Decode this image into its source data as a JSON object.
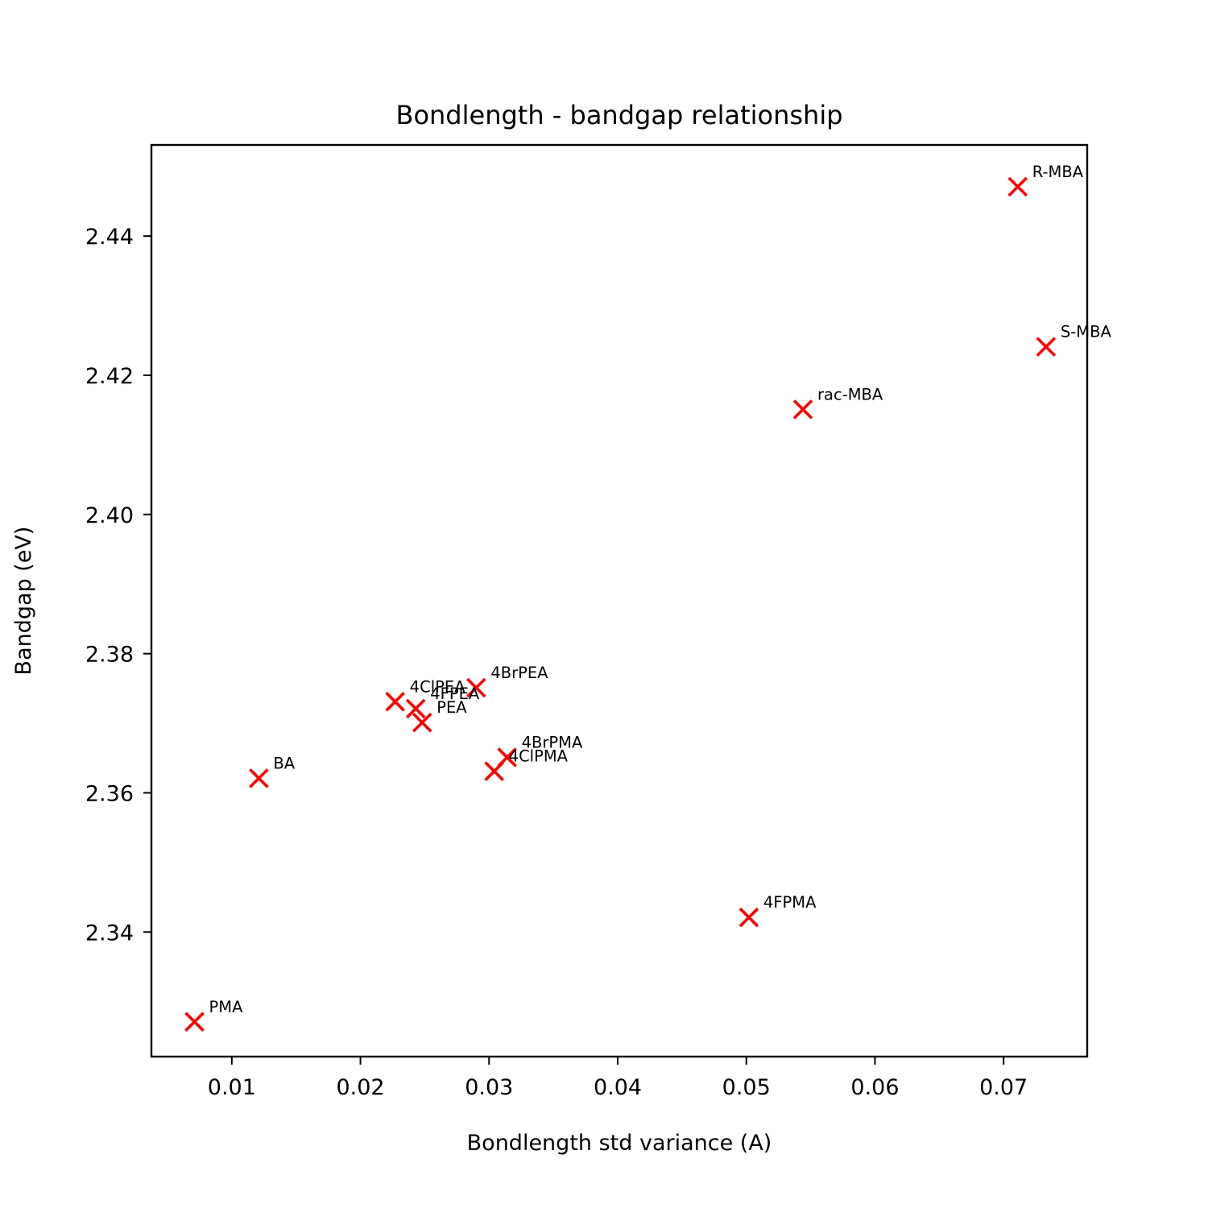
{
  "chart_data": {
    "type": "scatter",
    "title": "Bondlength - bandgap relationship",
    "xlabel": "Bondlength std variance (A)",
    "ylabel": "Bandgap (eV)",
    "xlim": [
      0.00375,
      0.0765
    ],
    "ylim": [
      2.3221,
      2.4531
    ],
    "xticks": [
      0.01,
      0.02,
      0.03,
      0.04,
      0.05,
      0.06,
      0.07
    ],
    "xtick_labels": [
      "0.01",
      "0.02",
      "0.03",
      "0.04",
      "0.05",
      "0.06",
      "0.07"
    ],
    "yticks": [
      2.34,
      2.36,
      2.38,
      2.4,
      2.42,
      2.44
    ],
    "ytick_labels": [
      "2.34",
      "2.36",
      "2.38",
      "2.40",
      "2.42",
      "2.44"
    ],
    "grid": false,
    "legend": "none",
    "marker": "x",
    "marker_color": "#ff0000",
    "points": [
      {
        "label": "R-MBA",
        "x": 0.0711,
        "y": 2.4471
      },
      {
        "label": "S-MBA",
        "x": 0.0733,
        "y": 2.4241
      },
      {
        "label": "rac-MBA",
        "x": 0.0544,
        "y": 2.4151
      },
      {
        "label": "4BrPEA",
        "x": 0.029,
        "y": 2.3751
      },
      {
        "label": "4ClPEA",
        "x": 0.0227,
        "y": 2.3731
      },
      {
        "label": "4FPEA",
        "x": 0.0243,
        "y": 2.3721
      },
      {
        "label": "PEA",
        "x": 0.0248,
        "y": 2.3701
      },
      {
        "label": "4BrPMA",
        "x": 0.0314,
        "y": 2.3651
      },
      {
        "label": "4ClPMA",
        "x": 0.0304,
        "y": 2.3631
      },
      {
        "label": "BA",
        "x": 0.0121,
        "y": 2.3621
      },
      {
        "label": "4FPMA",
        "x": 0.0502,
        "y": 2.3421
      },
      {
        "label": "PMA",
        "x": 0.0071,
        "y": 2.3271
      }
    ]
  }
}
